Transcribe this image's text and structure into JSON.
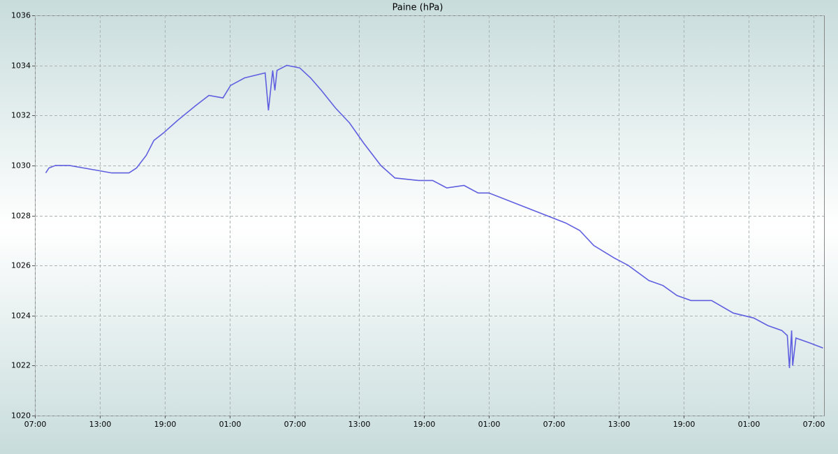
{
  "chart_data": {
    "type": "line",
    "title": "Paine (hPa)",
    "x": [
      1.0,
      1.3,
      1.9,
      3.2,
      4.5,
      5.8,
      7.1,
      8.7,
      9.4,
      10.3,
      11.0,
      11.9,
      13.2,
      14.9,
      16.1,
      17.4,
      18.1,
      19.4,
      21.3,
      21.6,
      22.0,
      22.2,
      22.4,
      23.3,
      24.5,
      25.5,
      26.5,
      27.8,
      29.1,
      30.4,
      32.0,
      33.3,
      35.5,
      36.8,
      38.1,
      39.7,
      41.0,
      42.0,
      49.1,
      50.4,
      51.7,
      53.6,
      54.9,
      56.8,
      58.1,
      59.4,
      60.7,
      62.6,
      64.6,
      66.5,
      67.8,
      69.1,
      69.6,
      69.8,
      70.0,
      70.1,
      70.4,
      71.7,
      72.9
    ],
    "series": [
      {
        "name": "Paine",
        "color": "#5f5fe0",
        "values": [
          1029.7,
          1029.9,
          1030.0,
          1030.0,
          1029.9,
          1029.8,
          1029.7,
          1029.7,
          1029.9,
          1030.4,
          1031.0,
          1031.3,
          1031.8,
          1032.4,
          1032.8,
          1032.7,
          1033.2,
          1033.5,
          1033.7,
          1032.2,
          1033.8,
          1033.0,
          1033.8,
          1034.0,
          1033.9,
          1033.5,
          1033.0,
          1032.3,
          1031.7,
          1030.9,
          1030.0,
          1029.5,
          1029.4,
          1029.4,
          1029.1,
          1029.2,
          1028.9,
          1028.9,
          1027.7,
          1027.4,
          1026.8,
          1026.3,
          1026.0,
          1025.4,
          1025.2,
          1024.8,
          1024.6,
          1024.6,
          1024.1,
          1023.9,
          1023.6,
          1023.4,
          1023.2,
          1021.9,
          1023.4,
          1022.0,
          1023.1,
          1022.9,
          1022.7
        ]
      }
    ],
    "xlim": [
      0,
      73
    ],
    "xticks": [
      {
        "value": 0,
        "label": "07:00"
      },
      {
        "value": 6,
        "label": "13:00"
      },
      {
        "value": 12,
        "label": "19:00"
      },
      {
        "value": 18,
        "label": "01:00"
      },
      {
        "value": 24,
        "label": "07:00"
      },
      {
        "value": 30,
        "label": "13:00"
      },
      {
        "value": 36,
        "label": "19:00"
      },
      {
        "value": 42,
        "label": "01:00"
      },
      {
        "value": 48,
        "label": "07:00"
      },
      {
        "value": 54,
        "label": "13:00"
      },
      {
        "value": 60,
        "label": "19:00"
      },
      {
        "value": 66,
        "label": "01:00"
      },
      {
        "value": 72,
        "label": "07:00"
      }
    ],
    "ylim": [
      1020,
      1036
    ],
    "yticks": [
      1020,
      1022,
      1024,
      1026,
      1028,
      1030,
      1032,
      1034,
      1036
    ],
    "grid": true
  }
}
